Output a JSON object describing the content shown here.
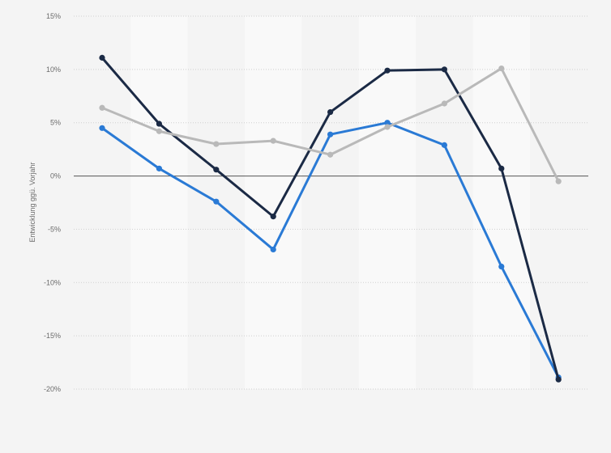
{
  "chart_data": {
    "type": "line",
    "title": "",
    "xlabel": "",
    "ylabel": "Entwicklung ggü. Vorjahr",
    "ylim": [
      -20,
      15
    ],
    "yticks": [
      15,
      10,
      5,
      0,
      -5,
      -10,
      -15,
      -20
    ],
    "ytick_labels": [
      "15%",
      "10%",
      "5%",
      "0%",
      "-5%",
      "-10%",
      "-15%",
      "-20%"
    ],
    "x": [
      1,
      2,
      3,
      4,
      5,
      6,
      7,
      8,
      9
    ],
    "grid": true,
    "legend": "none",
    "series": [
      {
        "color": "#2a7ad5",
        "values": [
          4.5,
          0.7,
          -2.4,
          -6.9,
          3.9,
          5.0,
          2.9,
          -8.5,
          -18.9
        ]
      },
      {
        "color": "#1b2a45",
        "values": [
          11.1,
          4.9,
          0.6,
          -3.8,
          6.0,
          9.9,
          10.0,
          0.7,
          -19.1
        ]
      },
      {
        "color": "#b9b9b9",
        "values": [
          6.4,
          4.2,
          3.0,
          3.3,
          2.0,
          4.6,
          6.8,
          10.1,
          -0.5
        ]
      }
    ]
  }
}
